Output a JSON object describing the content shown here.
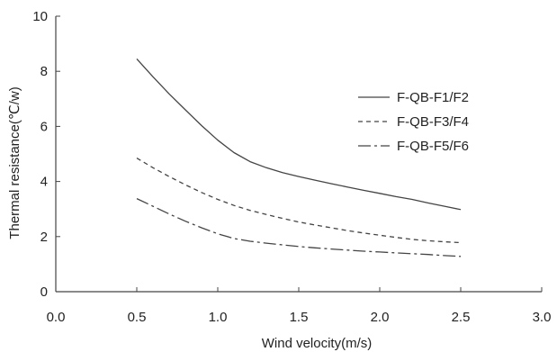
{
  "chart_data": {
    "type": "line",
    "xlabel": "Wind velocity(m/s)",
    "ylabel": "Thermal resistance(℃/w)",
    "xlim": [
      0,
      3.0
    ],
    "ylim": [
      0,
      10
    ],
    "x_ticks": [
      "0.0",
      "0.5",
      "1.0",
      "1.5",
      "2.0",
      "2.5",
      "3.0"
    ],
    "y_ticks": [
      "0",
      "2",
      "4",
      "6",
      "8",
      "10"
    ],
    "grid": false,
    "legend_position": "upper-right",
    "series": [
      {
        "name": "F-QB-F1/F2",
        "line_style": "solid",
        "color": "#444444",
        "x": [
          0.5,
          0.6,
          0.7,
          0.8,
          0.9,
          1.0,
          1.1,
          1.2,
          1.3,
          1.4,
          1.5,
          1.6,
          1.7,
          1.8,
          1.9,
          2.0,
          2.1,
          2.2,
          2.3,
          2.4,
          2.5
        ],
        "y": [
          8.45,
          7.8,
          7.18,
          6.6,
          6.03,
          5.5,
          5.05,
          4.72,
          4.5,
          4.32,
          4.18,
          4.05,
          3.92,
          3.8,
          3.68,
          3.57,
          3.45,
          3.35,
          3.22,
          3.1,
          2.98
        ]
      },
      {
        "name": "F-QB-F3/F4",
        "line_style": "dashed",
        "color": "#444444",
        "x": [
          0.5,
          0.6,
          0.7,
          0.8,
          0.9,
          1.0,
          1.1,
          1.2,
          1.3,
          1.4,
          1.5,
          1.6,
          1.7,
          1.8,
          1.9,
          2.0,
          2.1,
          2.2,
          2.3,
          2.4,
          2.5
        ],
        "y": [
          4.85,
          4.5,
          4.18,
          3.88,
          3.6,
          3.35,
          3.13,
          2.95,
          2.8,
          2.66,
          2.53,
          2.42,
          2.32,
          2.22,
          2.13,
          2.05,
          1.97,
          1.9,
          1.85,
          1.81,
          1.78
        ]
      },
      {
        "name": "F-QB-F5/F6",
        "line_style": "dash-dot",
        "color": "#444444",
        "x": [
          0.5,
          0.6,
          0.7,
          0.8,
          0.9,
          1.0,
          1.1,
          1.2,
          1.3,
          1.4,
          1.5,
          1.6,
          1.7,
          1.8,
          1.9,
          2.0,
          2.1,
          2.2,
          2.3,
          2.4,
          2.5
        ],
        "y": [
          3.38,
          3.1,
          2.82,
          2.56,
          2.32,
          2.1,
          1.93,
          1.83,
          1.76,
          1.7,
          1.64,
          1.59,
          1.55,
          1.51,
          1.47,
          1.44,
          1.41,
          1.38,
          1.35,
          1.31,
          1.28
        ]
      }
    ]
  }
}
